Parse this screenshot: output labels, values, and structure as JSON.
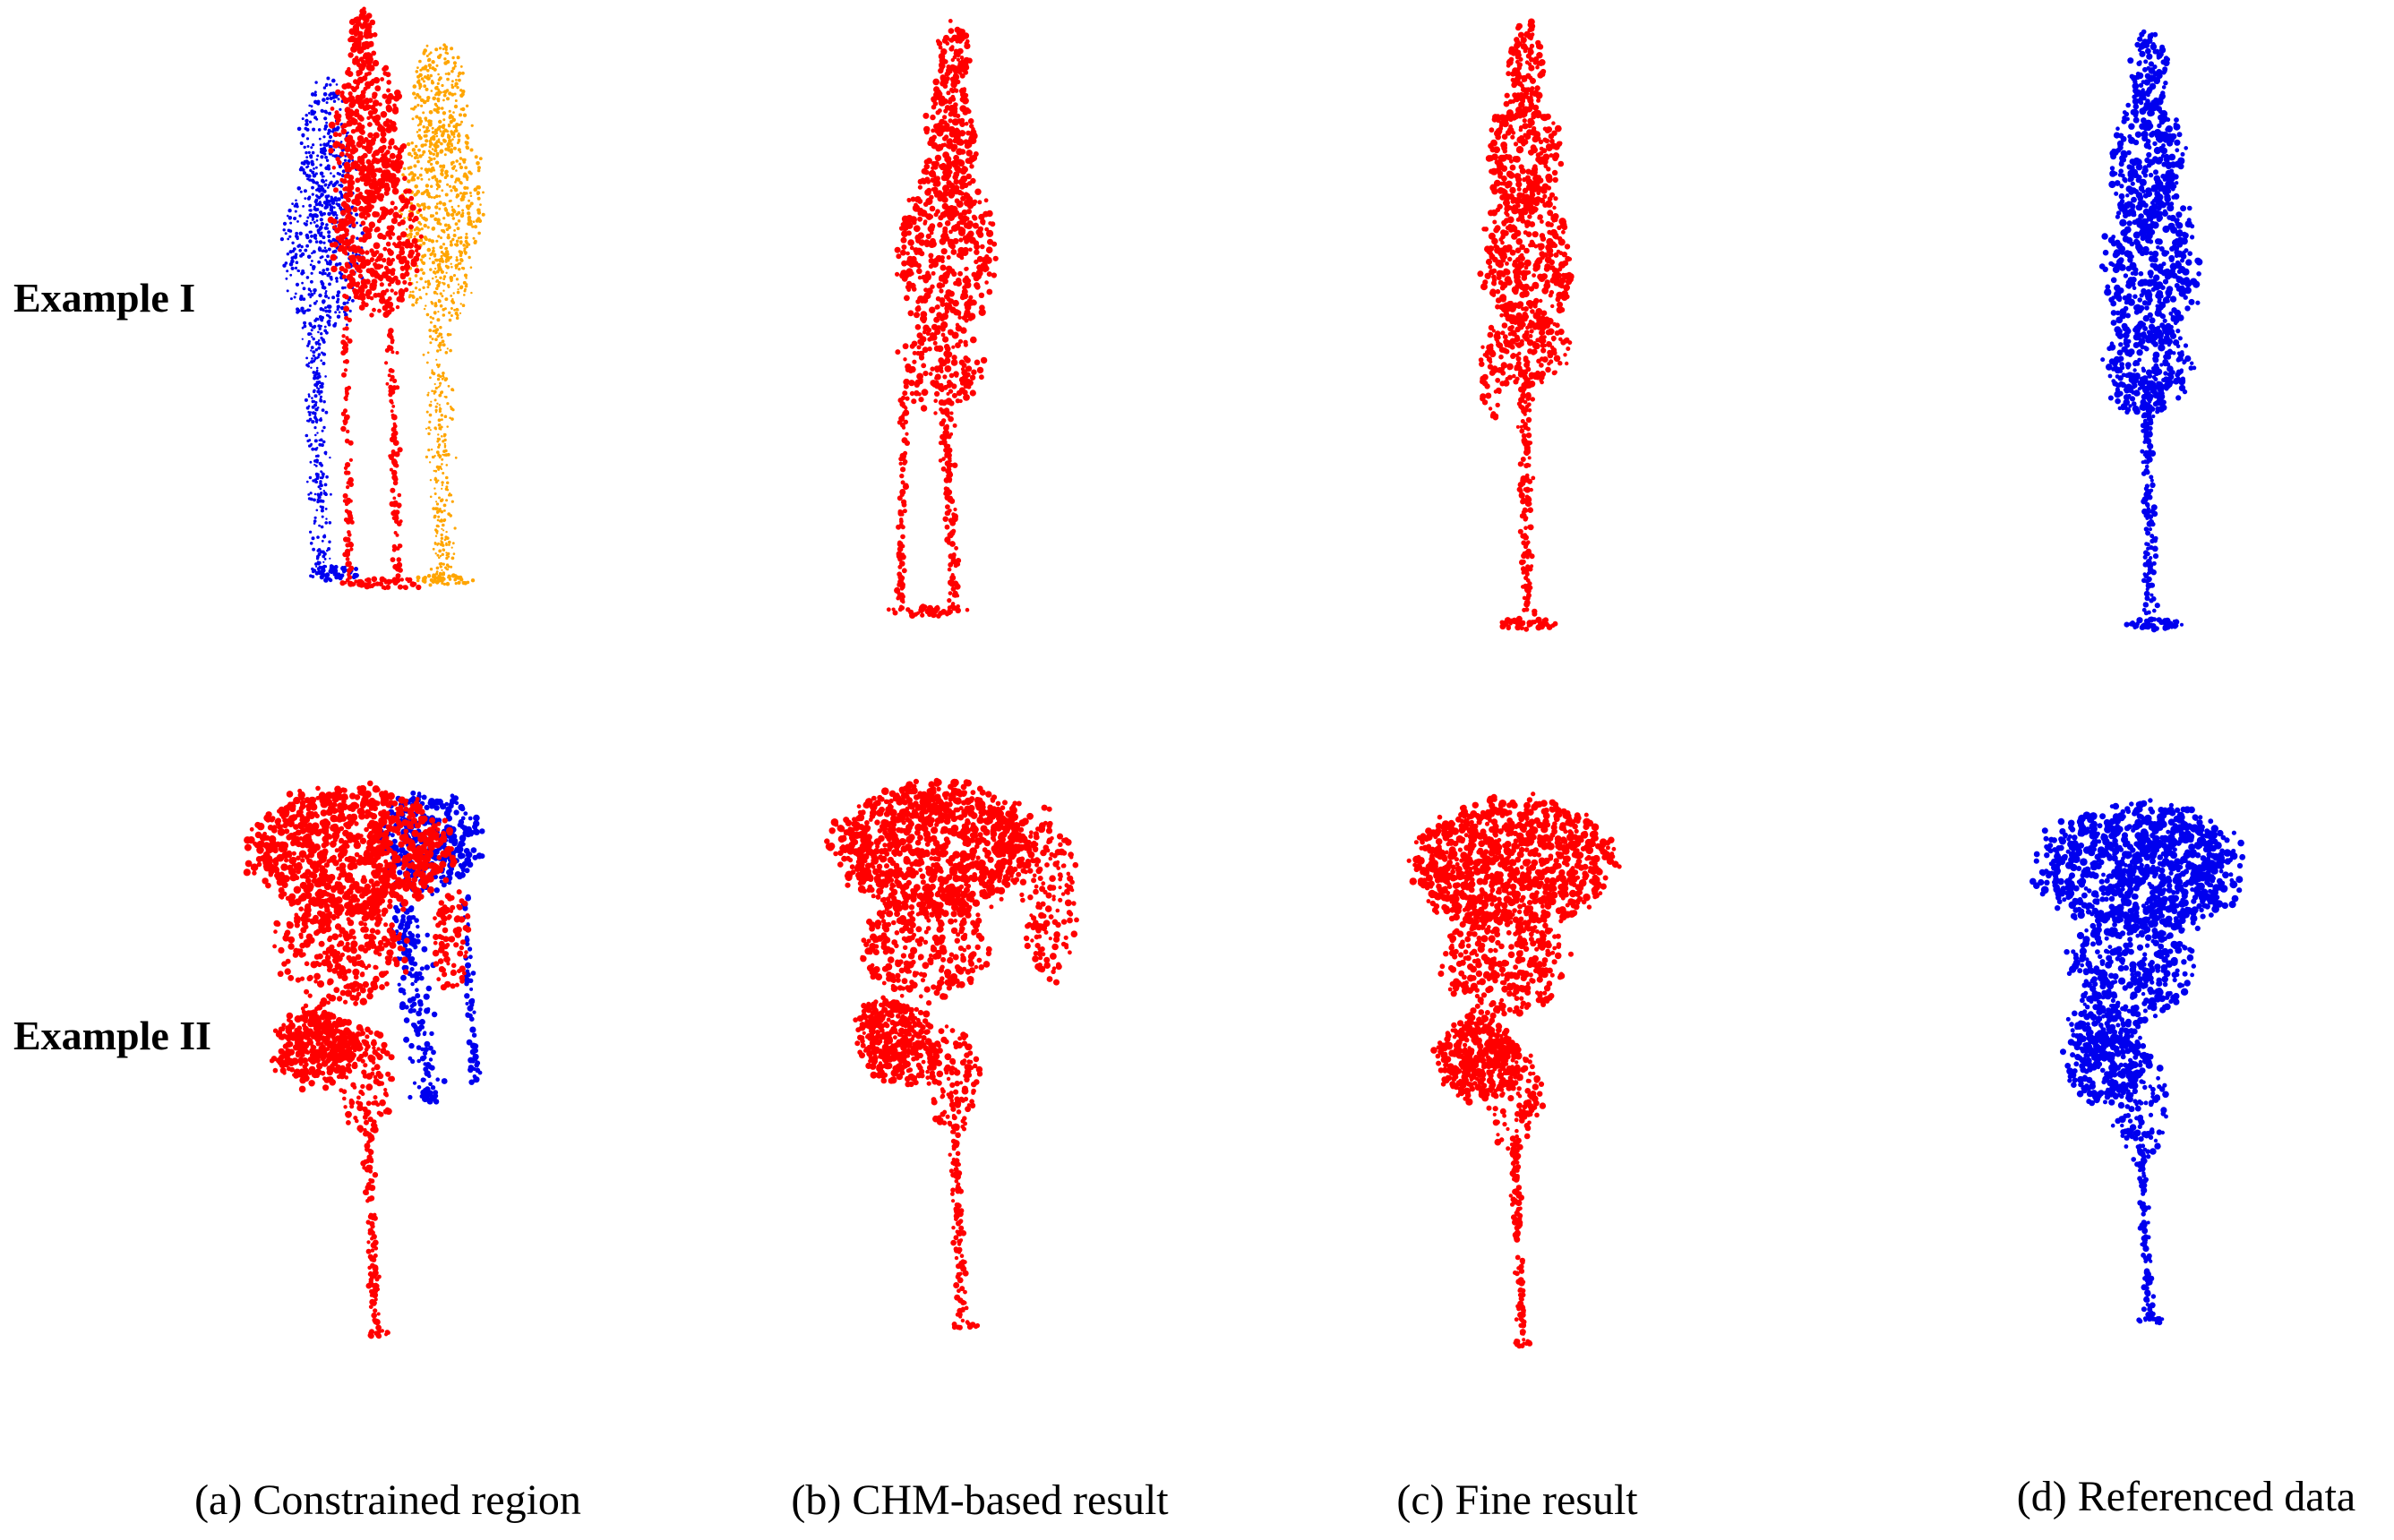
{
  "figure": {
    "row_labels": [
      "Example I",
      "Example II"
    ],
    "panel_captions": [
      "(a) Constrained region",
      "(b) CHM-based result",
      "(c) Fine result",
      "(d) Referenced data"
    ],
    "colors": {
      "tree_red": "#ff0000",
      "tree_blue": "#0000ee",
      "tree_orange": "#ffa500",
      "background": "#ffffff"
    }
  }
}
